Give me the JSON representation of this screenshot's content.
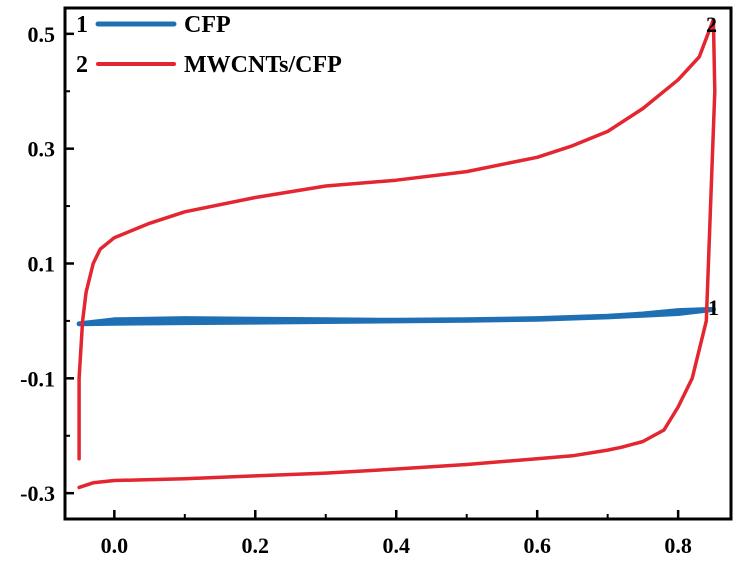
{
  "chart_data": {
    "type": "line",
    "title": "",
    "xlabel": "",
    "ylabel": "",
    "xlim": [
      -0.07,
      0.875
    ],
    "ylim": [
      -0.345,
      0.545
    ],
    "x_ticks": [
      "0.0",
      "0.2",
      "0.4",
      "0.6",
      "0.8"
    ],
    "x_tick_values": [
      0.0,
      0.2,
      0.4,
      0.6,
      0.8
    ],
    "y_ticks": [
      "0.5",
      "0.3",
      "0.1",
      "-0.1",
      "-0.3"
    ],
    "y_tick_values": [
      0.5,
      0.3,
      0.1,
      -0.1,
      -0.3
    ],
    "grid": false,
    "legend_position": "top-left",
    "legend": [
      {
        "number": "1",
        "name": "CFP",
        "color": "#1f6fb5"
      },
      {
        "number": "2",
        "name": "MWCNTs/CFP",
        "color": "#e3262f"
      }
    ],
    "series": [
      {
        "name": "CFP",
        "label": "1",
        "color": "#1f6fb5",
        "x": [
          -0.05,
          0.0,
          0.1,
          0.2,
          0.3,
          0.4,
          0.5,
          0.6,
          0.7,
          0.75,
          0.8,
          0.85,
          0.8,
          0.75,
          0.7,
          0.6,
          0.5,
          0.4,
          0.3,
          0.2,
          0.1,
          0.0,
          -0.05
        ],
        "y": [
          -0.005,
          -0.004,
          -0.003,
          -0.002,
          -0.001,
          0.0,
          0.001,
          0.003,
          0.007,
          0.01,
          0.013,
          0.02,
          0.018,
          0.012,
          0.008,
          0.004,
          0.002,
          0.001,
          0.002,
          0.003,
          0.004,
          0.002,
          -0.005
        ]
      },
      {
        "name": "MWCNTs/CFP",
        "label": "2",
        "color": "#e3262f",
        "x": [
          -0.05,
          -0.05,
          -0.045,
          -0.04,
          -0.03,
          -0.02,
          0.0,
          0.05,
          0.1,
          0.2,
          0.3,
          0.4,
          0.5,
          0.6,
          0.65,
          0.7,
          0.75,
          0.8,
          0.83,
          0.85,
          0.852,
          0.84,
          0.82,
          0.8,
          0.78,
          0.75,
          0.72,
          0.7,
          0.65,
          0.6,
          0.5,
          0.4,
          0.3,
          0.2,
          0.1,
          0.0,
          -0.03,
          -0.05
        ],
        "y": [
          -0.24,
          -0.1,
          0.0,
          0.05,
          0.1,
          0.125,
          0.145,
          0.17,
          0.19,
          0.215,
          0.235,
          0.245,
          0.26,
          0.285,
          0.305,
          0.33,
          0.37,
          0.42,
          0.46,
          0.525,
          0.4,
          0.0,
          -0.1,
          -0.15,
          -0.19,
          -0.21,
          -0.22,
          -0.225,
          -0.235,
          -0.24,
          -0.25,
          -0.258,
          -0.265,
          -0.27,
          -0.275,
          -0.278,
          -0.282,
          -0.29
        ]
      }
    ]
  }
}
